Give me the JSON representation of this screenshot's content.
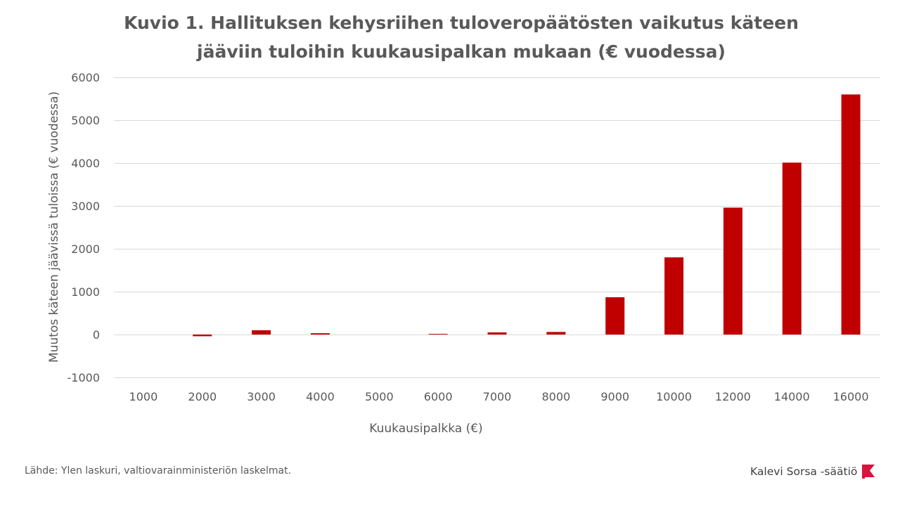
{
  "title": {
    "line1": "Kuvio 1. Hallituksen kehysriihen tuloveropäätösten vaikutus käteen",
    "line2": "jääviin tuloihin kuukausipalkan mukaan (€ vuodessa)"
  },
  "chart_data": {
    "type": "bar",
    "categories": [
      "1000",
      "2000",
      "3000",
      "4000",
      "5000",
      "6000",
      "7000",
      "8000",
      "9000",
      "10000",
      "12000",
      "14000",
      "16000"
    ],
    "series": [
      {
        "values": [
          0,
          -40,
          100,
          30,
          0,
          15,
          50,
          60,
          870,
          1800,
          2960,
          4010,
          5600
        ],
        "color": "#c00000"
      }
    ],
    "xlabel": "Kuukausipalkka (€)",
    "ylabel": "Muutos käteen jäävissä tuloissa (€ vuodessa)",
    "ylim": [
      -1000,
      6000
    ],
    "yticks": [
      "6000",
      "5000",
      "4000",
      "3000",
      "2000",
      "1000",
      "0",
      "-1000"
    ],
    "grid": true,
    "legend": "none"
  },
  "footer": {
    "source": "Lähde: Ylen laskuri, valtiovarainministeriön laskelmat.",
    "brand": "Kalevi Sorsa -säätiö",
    "brand_color": "#d6143c"
  },
  "colors": {
    "text": "#595959",
    "grid": "#d9d9d9",
    "bar": "#c00000"
  }
}
